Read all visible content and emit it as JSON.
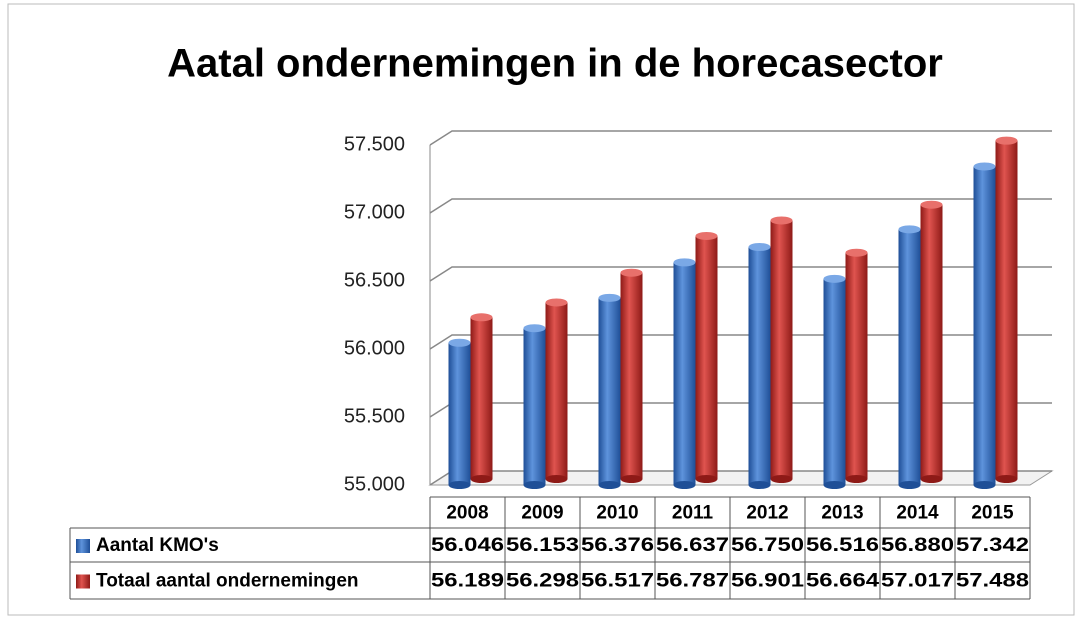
{
  "chart_data": {
    "type": "bar",
    "title": "Aatal ondernemingen in de horecasector",
    "categories": [
      "2008",
      "2009",
      "2010",
      "2011",
      "2012",
      "2013",
      "2014",
      "2015"
    ],
    "series": [
      {
        "name": "Aantal KMO's",
        "color": "#3f75c0",
        "values": [
          56046,
          56153,
          56376,
          56637,
          56750,
          56516,
          56880,
          57342
        ],
        "value_labels": [
          "56.046",
          "56.153",
          "56.376",
          "56.637",
          "56.750",
          "56.516",
          "56.880",
          "57.342"
        ]
      },
      {
        "name": "Totaal aantal ondernemingen",
        "color": "#c2302c",
        "values": [
          56189,
          56298,
          56517,
          56787,
          56901,
          56664,
          57017,
          57488
        ],
        "value_labels": [
          "56.189",
          "56.298",
          "56.517",
          "56.787",
          "56.901",
          "56.664",
          "57.017",
          "57.488"
        ]
      }
    ],
    "ylim": [
      55000,
      57500
    ],
    "yticks": [
      {
        "value": 55000,
        "label": "55.000"
      },
      {
        "value": 55500,
        "label": "55.500"
      },
      {
        "value": 56000,
        "label": "56.000"
      },
      {
        "value": 56500,
        "label": "56.500"
      },
      {
        "value": 57000,
        "label": "57.000"
      },
      {
        "value": 57500,
        "label": "57.500"
      }
    ],
    "grid": true
  }
}
